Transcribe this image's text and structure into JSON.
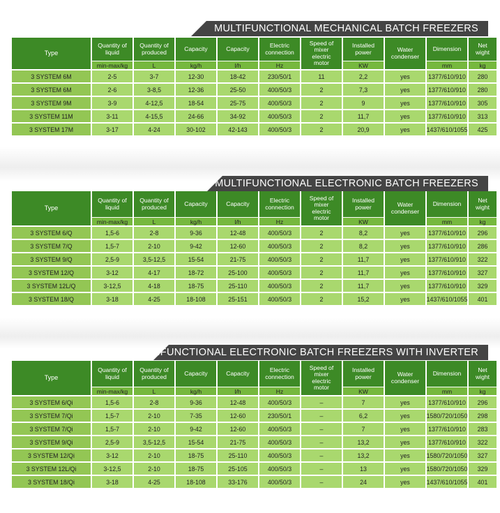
{
  "colors": {
    "banner": "#444444",
    "header": "#3d8a26",
    "units": "#76b83e",
    "cell": "#a9d86e",
    "name_cell": "#93c654"
  },
  "tables": [
    {
      "title": "MULTIFUNCTIONAL MECHANICAL BATCH FREEZERS",
      "headers": [
        "Type",
        "Quantity of\nliquid",
        "Quantity of\nproduced",
        "Capacity",
        "Capacity",
        "Electric\nconnection",
        "Speed of\nmixer\nelectric\nmotor",
        "Installed\npower",
        "Water\ncondenser",
        "Dimension",
        "Net\nwight"
      ],
      "units": [
        "",
        "min-max/kg",
        "L",
        "kg/h",
        "l/h",
        "Hz",
        "",
        "KW",
        "",
        "mm",
        "kg"
      ],
      "rows": [
        [
          "3 SYSTEM 6M",
          "2-5",
          "3-7",
          "12-30",
          "18-42",
          "230/50/1",
          "11",
          "2,2",
          "yes",
          "1377/610/910",
          "280"
        ],
        [
          "3 SYSTEM 6M",
          "2-6",
          "3-8,5",
          "12-36",
          "25-50",
          "400/50/3",
          "2",
          "7,3",
          "yes",
          "1377/610/910",
          "280"
        ],
        [
          "3 SYSTEM 9M",
          "3-9",
          "4-12,5",
          "18-54",
          "25-75",
          "400/50/3",
          "2",
          "9",
          "yes",
          "1377/610/910",
          "305"
        ],
        [
          "3 SYSTEM 11M",
          "3-11",
          "4-15,5",
          "24-66",
          "34-92",
          "400/50/3",
          "2",
          "11,7",
          "yes",
          "1377/610/910",
          "313"
        ],
        [
          "3 SYSTEM 17M",
          "3-17",
          "4-24",
          "30-102",
          "42-143",
          "400/50/3",
          "2",
          "20,9",
          "yes",
          "1437/610/1055",
          "425"
        ]
      ]
    },
    {
      "title": "MULTIFUNCTIONAL ELECTRONIC BATCH FREEZERS",
      "headers": [
        "Type",
        "Quantity of\nliquid",
        "Quantity of\nproduced",
        "Capacity",
        "Capacity",
        "Electric\nconnection",
        "Speed of\nmixer\nelectric\nmotor",
        "Installed\npower",
        "Water\ncondenser",
        "Dimension",
        "Net\nwight"
      ],
      "units": [
        "",
        "min-max/kg",
        "L",
        "kg/h",
        "l/h",
        "Hz",
        "",
        "KW",
        "",
        "mm",
        "kg"
      ],
      "rows": [
        [
          "3 SYSTEM 6/Q",
          "1,5-6",
          "2-8",
          "9-36",
          "12-48",
          "400/50/3",
          "2",
          "8,2",
          "yes",
          "1377/610/910",
          "296"
        ],
        [
          "3 SYSTEM 7/Q",
          "1,5-7",
          "2-10",
          "9-42",
          "12-60",
          "400/50/3",
          "2",
          "8,2",
          "yes",
          "1377/610/910",
          "286"
        ],
        [
          "3 SYSTEM 9/Q",
          "2,5-9",
          "3,5-12,5",
          "15-54",
          "21-75",
          "400/50/3",
          "2",
          "11,7",
          "yes",
          "1377/610/910",
          "322"
        ],
        [
          "3 SYSTEM 12/Q",
          "3-12",
          "4-17",
          "18-72",
          "25-100",
          "400/50/3",
          "2",
          "11,7",
          "yes",
          "1377/610/910",
          "327"
        ],
        [
          "3 SYSTEM 12L/Q",
          "3-12,5",
          "4-18",
          "18-75",
          "25-110",
          "400/50/3",
          "2",
          "11,7",
          "yes",
          "1377/610/910",
          "329"
        ],
        [
          "3 SYSTEM 18/Q",
          "3-18",
          "4-25",
          "18-108",
          "25-151",
          "400/50/3",
          "2",
          "15,2",
          "yes",
          "1437/610/1055",
          "401"
        ]
      ]
    },
    {
      "title": "MULTIFUNCTIONAL ELECTRONIC BATCH FREEZERS WITH INVERTER",
      "headers": [
        "Type",
        "Quantity of\nliquid",
        "Quantity of\nproduced",
        "Capacity",
        "Capacity",
        "Electric\nconnection",
        "Speed of\nmixer\nelectric\nmotor",
        "Installed\npower",
        "Water\ncondenser",
        "Dimension",
        "Net\nwight"
      ],
      "units": [
        "",
        "min-max/kg",
        "L",
        "kg/h",
        "l/h",
        "Hz",
        "",
        "KW",
        "",
        "mm",
        "kg"
      ],
      "rows": [
        [
          "3 SYSTEM 6/Qi",
          "1,5-6",
          "2-8",
          "9-36",
          "12-48",
          "400/50/3",
          "–",
          "7",
          "yes",
          "1377/610/910",
          "296"
        ],
        [
          "3 SYSTEM 7/Qi",
          "1,5-7",
          "2-10",
          "7-35",
          "12-60",
          "230/50/1",
          "–",
          "6,2",
          "yes",
          "1580/720/1050",
          "298"
        ],
        [
          "3 SYSTEM 7/Qi",
          "1,5-7",
          "2-10",
          "9-42",
          "12-60",
          "400/50/3",
          "–",
          "7",
          "yes",
          "1377/610/910",
          "283"
        ],
        [
          "3 SYSTEM 9/Qi",
          "2,5-9",
          "3,5-12,5",
          "15-54",
          "21-75",
          "400/50/3",
          "–",
          "13,2",
          "yes",
          "1377/610/910",
          "322"
        ],
        [
          "3 SYSTEM 12/Qi",
          "3-12",
          "2-10",
          "18-75",
          "25-110",
          "400/50/3",
          "–",
          "13,2",
          "yes",
          "1580/720/1050",
          "327"
        ],
        [
          "3 SYSTEM 12L/Qi",
          "3-12,5",
          "2-10",
          "18-75",
          "25-105",
          "400/50/3",
          "–",
          "13",
          "yes",
          "1580/720/1050",
          "329"
        ],
        [
          "3 SYSTEM 18/Qi",
          "3-18",
          "4-25",
          "18-108",
          "33-176",
          "400/50/3",
          "–",
          "24",
          "yes",
          "1437/610/1055",
          "401"
        ]
      ]
    }
  ]
}
